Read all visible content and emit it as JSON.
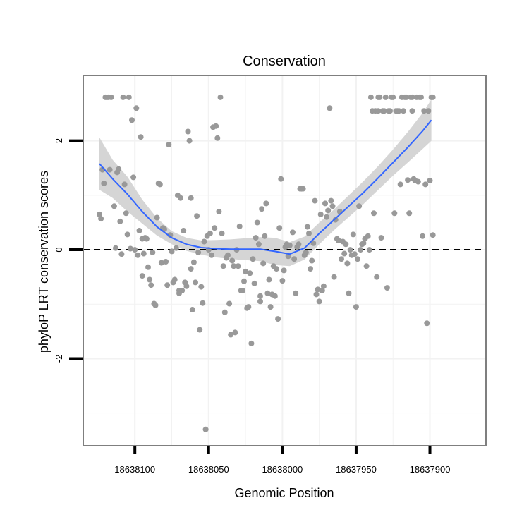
{
  "chart_data": {
    "type": "scatter",
    "title": "Conservation",
    "xlabel": "Genomic Position",
    "ylabel": "phyloP LRT conservation scores",
    "x_reversed": true,
    "xlim": [
      18638135,
      18637862
    ],
    "ylim": [
      -3.6,
      3.2
    ],
    "xticks": [
      18638100,
      18638050,
      18638000,
      18637950,
      18637900
    ],
    "xtick_labels": [
      "18638100",
      "18638050",
      "18638000",
      "18637950",
      "18637900"
    ],
    "yticks": [
      2,
      0,
      -2
    ],
    "ytick_labels": [
      "2",
      "0",
      "-2"
    ],
    "minor_yticks": [
      1,
      -1,
      -3
    ],
    "reference_line": {
      "y": 0,
      "style": "dashed",
      "color": "#000000"
    },
    "grid": true,
    "colors": {
      "points": "#999999",
      "smooth": "#3366ff",
      "band": "#d3d3d3",
      "panel_border": "#7f7f7f",
      "grid": "#f2f2f2"
    },
    "points": [
      [
        18638124,
        0.65
      ],
      [
        18638123,
        0.57
      ],
      [
        18638122,
        1.47
      ],
      [
        18638121,
        1.22
      ],
      [
        18638120,
        2.8
      ],
      [
        18638119,
        2.8
      ],
      [
        18638118,
        2.8
      ],
      [
        18638117,
        1.47
      ],
      [
        18638116,
        2.8
      ],
      [
        18638114,
        0.8
      ],
      [
        18638113,
        0.03
      ],
      [
        18638112,
        1.42
      ],
      [
        18638111,
        1.48
      ],
      [
        18638110,
        0.52
      ],
      [
        18638109,
        -0.08
      ],
      [
        18638108,
        2.8
      ],
      [
        18638107,
        1.2
      ],
      [
        18638106,
        0.67
      ],
      [
        18638105,
        0.28
      ],
      [
        18638104,
        2.8
      ],
      [
        18638103,
        0.02
      ],
      [
        18638102,
        2.38
      ],
      [
        18638101,
        1.33
      ],
      [
        18638100,
        0.0
      ],
      [
        18638099,
        2.6
      ],
      [
        18638098,
        -0.1
      ],
      [
        18638097,
        0.35
      ],
      [
        18638096,
        2.07
      ],
      [
        18638095,
        -0.48
      ],
      [
        18638094,
        -0.07
      ],
      [
        18638093,
        0.22
      ],
      [
        18638092,
        0.2
      ],
      [
        18638091,
        -0.32
      ],
      [
        18638090,
        -0.55
      ],
      [
        18638089,
        -0.65
      ],
      [
        18638088,
        -0.05
      ],
      [
        18638087,
        -0.99
      ],
      [
        18638086,
        -1.02
      ],
      [
        18638085,
        0.59
      ],
      [
        18638084,
        1.22
      ],
      [
        18638083,
        1.2
      ],
      [
        18638082,
        -0.24
      ],
      [
        18638081,
        0.4
      ],
      [
        18638080,
        0.38
      ],
      [
        18638079,
        -0.22
      ],
      [
        18638078,
        -0.65
      ],
      [
        18638077,
        1.93
      ],
      [
        18638076,
        0.27
      ],
      [
        18638075,
        -0.03
      ],
      [
        18638074,
        -0.6
      ],
      [
        18638073,
        -0.55
      ],
      [
        18638072,
        0.03
      ],
      [
        18638071,
        1.0
      ],
      [
        18638070,
        -0.8
      ],
      [
        18638069,
        0.95
      ],
      [
        18638068,
        -0.75
      ],
      [
        18638067,
        0.35
      ],
      [
        18638066,
        -0.6
      ],
      [
        18638065,
        -0.67
      ],
      [
        18638064,
        2.17
      ],
      [
        18638063,
        2.0
      ],
      [
        18638062,
        -0.35
      ],
      [
        18638061,
        -1.1
      ],
      [
        18638060,
        -0.23
      ],
      [
        18638059,
        -0.6
      ],
      [
        18638058,
        0.62
      ],
      [
        18638057,
        -0.05
      ],
      [
        18638056,
        -1.47
      ],
      [
        18638055,
        -0.68
      ],
      [
        18638054,
        -0.98
      ],
      [
        18638053,
        0.15
      ],
      [
        18638052,
        -3.3
      ],
      [
        18638051,
        0.25
      ],
      [
        18638050,
        0.0
      ],
      [
        18638049,
        0.3
      ],
      [
        18638048,
        -0.1
      ],
      [
        18638047,
        2.25
      ],
      [
        18638046,
        0.4
      ],
      [
        18638045,
        2.27
      ],
      [
        18638044,
        2.05
      ],
      [
        18638043,
        0.7
      ],
      [
        18638042,
        2.8
      ],
      [
        18638041,
        0.3
      ],
      [
        18638040,
        -0.3
      ],
      [
        18638039,
        -1.15
      ],
      [
        18638038,
        -0.15
      ],
      [
        18638037,
        -0.1
      ],
      [
        18638036,
        -0.99
      ],
      [
        18638035,
        -1.56
      ],
      [
        18638034,
        -0.2
      ],
      [
        18638033,
        -0.3
      ],
      [
        18638032,
        -1.52
      ],
      [
        18638031,
        0.0
      ],
      [
        18638030,
        -0.3
      ],
      [
        18638029,
        0.43
      ],
      [
        18638028,
        -0.75
      ],
      [
        18638027,
        -0.75
      ],
      [
        18638026,
        -0.58
      ],
      [
        18638025,
        -0.4
      ],
      [
        18638024,
        -1.07
      ],
      [
        18638023,
        -1.05
      ],
      [
        18638022,
        -0.43
      ],
      [
        18638021,
        -1.72
      ],
      [
        18638020,
        -0.17
      ],
      [
        18638019,
        -0.62
      ],
      [
        18638018,
        0.22
      ],
      [
        18638017,
        0.5
      ],
      [
        18638016,
        0.1
      ],
      [
        18638015,
        -0.95
      ],
      [
        18638014,
        0.75
      ],
      [
        18638013,
        -0.25
      ],
      [
        18638012,
        0.25
      ],
      [
        18638011,
        0.85
      ],
      [
        18638010,
        -0.8
      ],
      [
        18638009,
        -0.55
      ],
      [
        18638008,
        -1.05
      ],
      [
        18638007,
        -0.82
      ],
      [
        18638006,
        -0.3
      ],
      [
        18638005,
        -0.85
      ],
      [
        18638004,
        -0.35
      ],
      [
        18638003,
        -1.27
      ],
      [
        18638002,
        0.4
      ],
      [
        18638001,
        1.3
      ],
      [
        18638000,
        -0.57
      ],
      [
        18637999,
        -0.38
      ],
      [
        18637998,
        0.05
      ],
      [
        18637997,
        0.1
      ],
      [
        18637996,
        -0.12
      ],
      [
        18637995,
        0.08
      ],
      [
        18637993,
        0.32
      ],
      [
        18637992,
        -0.17
      ],
      [
        18637991,
        -0.8
      ],
      [
        18637990,
        0.05
      ],
      [
        18637989,
        0.1
      ],
      [
        18637988,
        1.12
      ],
      [
        18637987,
        1.12
      ],
      [
        18637986,
        1.12
      ],
      [
        18637985,
        -0.1
      ],
      [
        18637984,
        -0.05
      ],
      [
        18637983,
        0.42
      ],
      [
        18637982,
        0.3
      ],
      [
        18637981,
        -0.35
      ],
      [
        18637980,
        -0.2
      ],
      [
        18637979,
        0.12
      ],
      [
        18637978,
        0.9
      ],
      [
        18637977,
        -0.82
      ],
      [
        18637976,
        -0.73
      ],
      [
        18637975,
        -0.95
      ],
      [
        18637974,
        0.65
      ],
      [
        18637973,
        -0.75
      ],
      [
        18637972,
        -0.67
      ],
      [
        18637971,
        0.85
      ],
      [
        18637970,
        0.6
      ],
      [
        18637969,
        0.72
      ],
      [
        18637968,
        2.6
      ],
      [
        18637967,
        0.9
      ],
      [
        18637966,
        0.8
      ],
      [
        18637965,
        -0.5
      ],
      [
        18637964,
        0.55
      ],
      [
        18637963,
        0.2
      ],
      [
        18637962,
        0.17
      ],
      [
        18637961,
        0.7
      ],
      [
        18637960,
        -0.17
      ],
      [
        18637959,
        0.15
      ],
      [
        18637958,
        -0.07
      ],
      [
        18637957,
        0.1
      ],
      [
        18637956,
        -0.25
      ],
      [
        18637955,
        -0.8
      ],
      [
        18637954,
        0.0
      ],
      [
        18637953,
        -0.1
      ],
      [
        18637952,
        0.28
      ],
      [
        18637951,
        -0.08
      ],
      [
        18637950,
        -1.05
      ],
      [
        18637949,
        -0.17
      ],
      [
        18637948,
        0.8
      ],
      [
        18637947,
        0.0
      ],
      [
        18637946,
        0.1
      ],
      [
        18637945,
        0.12
      ],
      [
        18637944,
        0.2
      ],
      [
        18637943,
        -0.3
      ],
      [
        18637942,
        0.25
      ],
      [
        18637941,
        0.0
      ],
      [
        18637940,
        2.8
      ],
      [
        18637939,
        2.55
      ],
      [
        18637938,
        0.67
      ],
      [
        18637937,
        2.55
      ],
      [
        18637936,
        -0.5
      ],
      [
        18637935,
        2.8
      ],
      [
        18637934,
        2.8
      ],
      [
        18637933,
        0.22
      ],
      [
        18637932,
        2.55
      ],
      [
        18637931,
        2.55
      ],
      [
        18637930,
        2.8
      ],
      [
        18637929,
        -0.7
      ],
      [
        18637928,
        2.55
      ],
      [
        18637927,
        2.55
      ],
      [
        18637926,
        2.8
      ],
      [
        18637925,
        2.8
      ],
      [
        18637924,
        0.67
      ],
      [
        18637923,
        2.55
      ],
      [
        18637922,
        2.55
      ],
      [
        18637921,
        2.55
      ],
      [
        18637920,
        1.2
      ],
      [
        18637919,
        2.8
      ],
      [
        18637918,
        2.55
      ],
      [
        18637917,
        2.8
      ],
      [
        18637916,
        2.8
      ],
      [
        18637915,
        1.28
      ],
      [
        18637914,
        0.67
      ],
      [
        18637913,
        2.8
      ],
      [
        18637912,
        2.8
      ],
      [
        18637911,
        1.3
      ],
      [
        18637910,
        1.27
      ],
      [
        18637909,
        2.8
      ],
      [
        18637908,
        1.25
      ],
      [
        18637907,
        2.8
      ],
      [
        18637906,
        2.8
      ],
      [
        18637905,
        0.25
      ],
      [
        18637904,
        2.55
      ],
      [
        18637903,
        1.2
      ],
      [
        18637902,
        -1.35
      ],
      [
        18637901,
        2.55
      ],
      [
        18637900,
        1.27
      ],
      [
        18637899,
        2.8
      ],
      [
        18637898,
        0.27
      ],
      [
        18638015,
        -0.85
      ],
      [
        18638062,
        0.95
      ],
      [
        18638070,
        -0.75
      ],
      [
        18638095,
        0.2
      ],
      [
        18637898,
        2.8
      ],
      [
        18637935,
        2.55
      ],
      [
        18637912,
        2.55
      ]
    ],
    "smooth": {
      "x": [
        18638124,
        18638115,
        18638105,
        18638095,
        18638085,
        18638075,
        18638065,
        18638055,
        18638045,
        18638035,
        18638025,
        18638015,
        18638005,
        18637995,
        18637985,
        18637975,
        18637965,
        18637955,
        18637945,
        18637935,
        18637925,
        18637915,
        18637905,
        18637899
      ],
      "y": [
        1.58,
        1.3,
        1.02,
        0.7,
        0.42,
        0.22,
        0.1,
        0.04,
        0.02,
        0.01,
        0.01,
        0.01,
        -0.03,
        -0.08,
        0.03,
        0.3,
        0.55,
        0.8,
        1.05,
        1.32,
        1.6,
        1.88,
        2.18,
        2.38
      ],
      "lo": [
        1.1,
        0.95,
        0.7,
        0.48,
        0.26,
        0.1,
        -0.02,
        -0.09,
        -0.14,
        -0.17,
        -0.19,
        -0.21,
        -0.28,
        -0.3,
        -0.18,
        0.1,
        0.36,
        0.6,
        0.84,
        1.1,
        1.36,
        1.6,
        1.85,
        2.0
      ],
      "hi": [
        2.06,
        1.65,
        1.34,
        0.92,
        0.58,
        0.34,
        0.22,
        0.17,
        0.18,
        0.19,
        0.21,
        0.23,
        0.22,
        0.14,
        0.24,
        0.5,
        0.74,
        1.0,
        1.26,
        1.54,
        1.84,
        2.16,
        2.51,
        2.76
      ]
    }
  }
}
